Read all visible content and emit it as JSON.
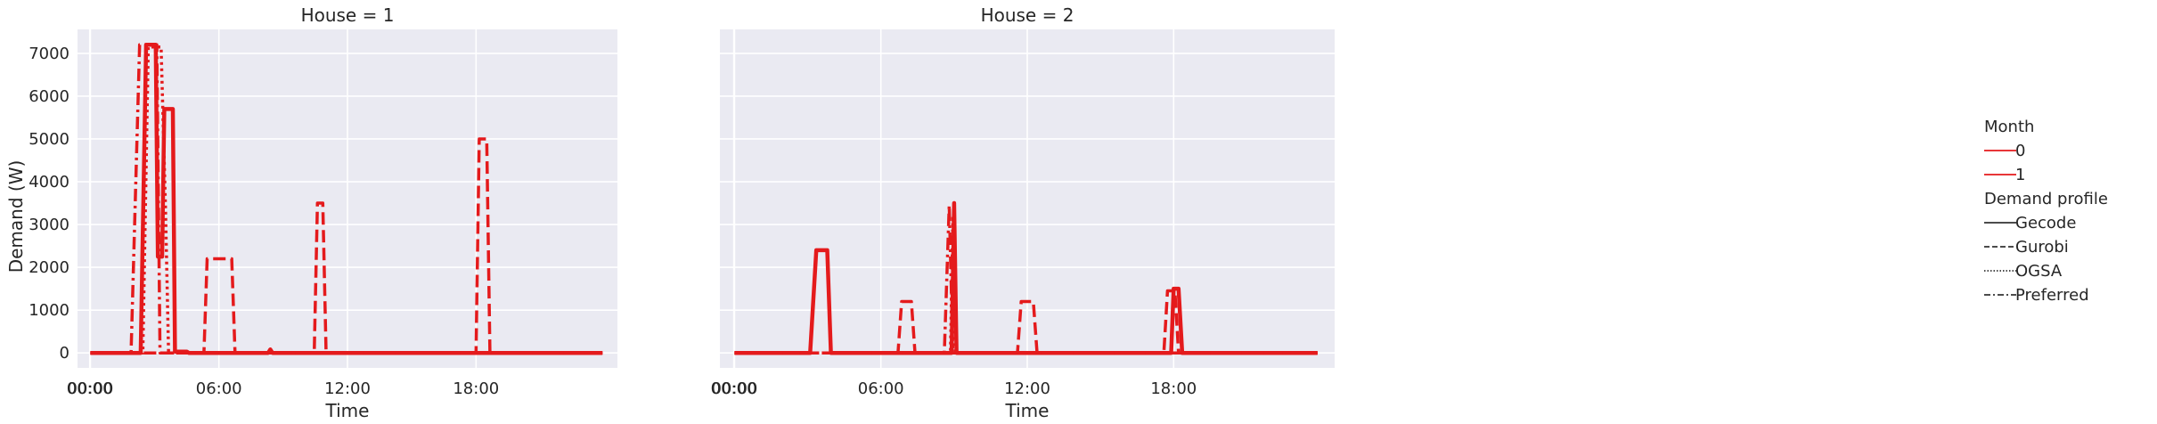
{
  "chart_data": {
    "type": "line",
    "ylabel": "Demand (W)",
    "xlabel": "Time",
    "ylim": [
      -350,
      7560
    ],
    "xlim": [
      -0.6,
      24.6
    ],
    "yticks": [
      0,
      1000,
      2000,
      3000,
      4000,
      5000,
      6000,
      7000
    ],
    "xticks": [
      {
        "value": -0.03,
        "label": "00:00"
      },
      {
        "value": 0.0,
        "label": "00:00"
      },
      {
        "value": 6.0,
        "label": "06:00"
      },
      {
        "value": 12.0,
        "label": "12:00"
      },
      {
        "value": 18.0,
        "label": "18:00"
      }
    ],
    "grid": true,
    "legend_position": "right",
    "line_color": "#e41a1c",
    "panels": [
      {
        "title": "House = 1",
        "series": [
          {
            "name": "Gecode",
            "style": "solid",
            "width": 4.5,
            "points": [
              [
                0,
                0
              ],
              [
                2.35,
                0
              ],
              [
                2.6,
                7200
              ],
              [
                3.05,
                7200
              ],
              [
                3.15,
                2250
              ],
              [
                3.35,
                2250
              ],
              [
                3.45,
                5700
              ],
              [
                3.85,
                5700
              ],
              [
                3.95,
                30
              ],
              [
                4.5,
                30
              ],
              [
                4.6,
                0
              ],
              [
                8.3,
                0
              ],
              [
                8.4,
                80
              ],
              [
                8.5,
                0
              ],
              [
                23.9,
                0
              ]
            ]
          },
          {
            "name": "Gurobi",
            "style": "dashed",
            "width": 3.5,
            "points": [
              [
                0,
                0
              ],
              [
                5.3,
                0
              ],
              [
                5.45,
                2200
              ],
              [
                6.6,
                2200
              ],
              [
                6.75,
                0
              ],
              [
                10.45,
                0
              ],
              [
                10.6,
                3500
              ],
              [
                10.85,
                3500
              ],
              [
                11.0,
                0
              ],
              [
                18.0,
                0
              ],
              [
                18.15,
                5000
              ],
              [
                18.5,
                5000
              ],
              [
                18.65,
                0
              ],
              [
                23.9,
                0
              ]
            ]
          },
          {
            "name": "OGSA",
            "style": "dotted",
            "width": 3.5,
            "points": [
              [
                0,
                0
              ],
              [
                2.45,
                0
              ],
              [
                2.7,
                7150
              ],
              [
                3.3,
                7150
              ],
              [
                3.5,
                3500
              ],
              [
                3.65,
                0
              ],
              [
                23.9,
                0
              ]
            ]
          },
          {
            "name": "Preferred",
            "style": "dashdot",
            "width": 3.5,
            "points": [
              [
                0,
                0
              ],
              [
                1.9,
                0
              ],
              [
                2.3,
                7200
              ],
              [
                3.1,
                7200
              ],
              [
                3.25,
                0
              ],
              [
                23.9,
                0
              ]
            ]
          }
        ]
      },
      {
        "title": "House = 2",
        "series": [
          {
            "name": "Gecode",
            "style": "solid",
            "width": 4.5,
            "points": [
              [
                0,
                0
              ],
              [
                3.1,
                0
              ],
              [
                3.35,
                2400
              ],
              [
                3.8,
                2400
              ],
              [
                3.95,
                0
              ],
              [
                8.9,
                0
              ],
              [
                9.0,
                3500
              ],
              [
                9.1,
                0
              ],
              [
                17.9,
                0
              ],
              [
                18.0,
                1500
              ],
              [
                18.2,
                1500
              ],
              [
                18.35,
                0
              ],
              [
                23.9,
                0
              ]
            ]
          },
          {
            "name": "Gurobi",
            "style": "dashed",
            "width": 3.5,
            "points": [
              [
                0,
                0
              ],
              [
                6.7,
                0
              ],
              [
                6.85,
                1200
              ],
              [
                7.25,
                1200
              ],
              [
                7.4,
                0
              ],
              [
                11.6,
                0
              ],
              [
                11.75,
                1200
              ],
              [
                12.25,
                1200
              ],
              [
                12.4,
                0
              ],
              [
                17.6,
                0
              ],
              [
                17.75,
                1450
              ],
              [
                18.05,
                1450
              ],
              [
                18.2,
                0
              ],
              [
                23.9,
                0
              ]
            ]
          },
          {
            "name": "OGSA",
            "style": "dotted",
            "width": 3.5,
            "points": [
              [
                0,
                0
              ],
              [
                8.85,
                0
              ],
              [
                8.95,
                3200
              ],
              [
                9.05,
                0
              ],
              [
                23.9,
                0
              ]
            ]
          },
          {
            "name": "Preferred",
            "style": "dashdot",
            "width": 3.5,
            "points": [
              [
                0,
                0
              ],
              [
                8.6,
                0
              ],
              [
                8.8,
                3450
              ],
              [
                8.95,
                0
              ],
              [
                23.9,
                0
              ]
            ]
          }
        ]
      }
    ],
    "legend": {
      "hue_title": "Month",
      "hue_entries": [
        "0",
        "1"
      ],
      "style_title": "Demand profile",
      "style_entries": [
        {
          "label": "Gecode",
          "style": "solid"
        },
        {
          "label": "Gurobi",
          "style": "dashed"
        },
        {
          "label": "OGSA",
          "style": "dotted"
        },
        {
          "label": "Preferred",
          "style": "dashdot"
        }
      ]
    }
  }
}
